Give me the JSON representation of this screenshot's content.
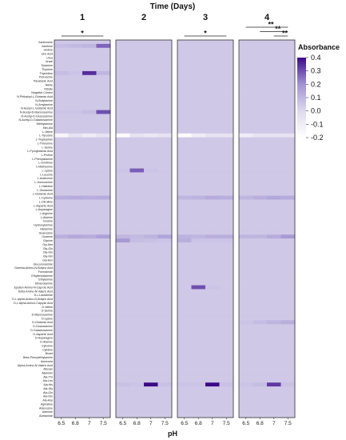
{
  "chart_data": {
    "type": "heatmap",
    "title": "Time (Days)",
    "xlabel": "pH",
    "panels": [
      "1",
      "2",
      "3",
      "4"
    ],
    "x_ticks": [
      "6.5",
      "6.8",
      "7",
      "7.5"
    ],
    "legend_title": "Absorbance",
    "color_scale": {
      "min": -0.2,
      "max": 0.4,
      "ticks": [
        "0.4",
        "0.3",
        "0.2",
        "0.1",
        "0.0",
        "-0.1",
        "-0.2"
      ],
      "low_color": "#ffffff",
      "high_color": "#3d0a87"
    },
    "row_labels": [
      "Xanthosine",
      "Xanthine",
      "Uridine",
      "Uric Acid",
      "Urea",
      "Uracil",
      "Tyramine",
      "Thymine",
      "Thymidine",
      "Putrescine",
      "Parabanic Acid",
      "Nitrite",
      "Nitrate",
      "Negative Control",
      "N-Phthaloyl-L-Glutamic Acid",
      "N-Butylamine",
      "N-Amylamine",
      "N-Acetyl-L-Glutamic Acid",
      "N-Acetyl-D-Mannosamine",
      "N-Acetyl-D-Glucosamine",
      "N-Acetyl-D-Galactosamine",
      "Methylamine",
      "Met-Ala",
      "L-Valine",
      "L-Tyrosine",
      "L-Tryptophan",
      "L-Threonine",
      "L-Serine",
      "L-Pyroglutamic Acid",
      "L-Proline",
      "L-Phenylalanine",
      "L-Ornithine",
      "L-Methionine",
      "L-Lysine",
      "L-Leucine",
      "L-Isoleucine",
      "L-Homoserine",
      "L-Histidine",
      "L-Glutamine",
      "L-Glutamic Acid",
      "L-Cysteine",
      "L-Citrulline",
      "L-Aspartic Acid",
      "L-Asparagine",
      "L-Arginine",
      "L-Alanine",
      "Inosine",
      "Hydroxylamine",
      "Histamine",
      "Guanosine",
      "Guanine",
      "Glycine",
      "Gly-Met",
      "Gly-Gln",
      "Gly-Glu",
      "Gly-Gln",
      "Gly-Asn",
      "Glucuronamide",
      "Gamma-Amino-N-Butyric Acid",
      "Formamide",
      "Ethylenediamine",
      "Ethylamine",
      "Ethanolamine",
      "Epsilon-Amino-N-Caproic Acid",
      "Delta-Amino-N-Valeric Acid",
      "D,L-Lactamide",
      "D,L-alpha-Amino-N-Butyric Acid",
      "D,L-alpha-Amino-Caprylic Acid",
      "D-Valine",
      "D-Serine",
      "D-Mannosamine",
      "D-Lysine",
      "D-Glutamic Acid",
      "D-Glucosamine",
      "D-Galactosamine",
      "D-Aspartic Acid",
      "D-Asparagine",
      "D-Alanine",
      "Cytosine",
      "Cytidine",
      "Biuret",
      "Beta-Phenylethylamine",
      "Ammonia",
      "Alpha-Amino-N-Valeric Acid",
      "Alloxan",
      "Allantoin",
      "Ala-Thr",
      "Ala-Leu",
      "Ala-His",
      "Ala-Gly",
      "Ala-Gln",
      "Ala-Glu",
      "Ala-Asp",
      "Agmatine",
      "Adenosine",
      "Adenine",
      "Acetamide"
    ],
    "base_value": 0.05,
    "values_grid": "panel x 4 pH columns x row; unspecified cells = base_value",
    "special_cells": [
      {
        "panel": 0,
        "row": "Xanthine",
        "values": [
          0.08,
          0.09,
          0.1,
          0.27
        ]
      },
      {
        "panel": 0,
        "row": "Thymidine",
        "values": [
          0.08,
          0.06,
          0.35,
          0.1
        ]
      },
      {
        "panel": 0,
        "row": "N-Acetyl-D-Mannosamine",
        "values": [
          0.06,
          0.06,
          0.08,
          0.3
        ]
      },
      {
        "panel": 0,
        "row": "L-Tyrosine",
        "values": [
          -0.15,
          -0.05,
          -0.1,
          -0.05
        ]
      },
      {
        "panel": 1,
        "row": "L-Tyrosine",
        "values": [
          -0.18,
          -0.05,
          -0.08,
          -0.05
        ]
      },
      {
        "panel": 2,
        "row": "L-Tyrosine",
        "values": [
          -0.18,
          -0.1,
          -0.05,
          -0.05
        ]
      },
      {
        "panel": 3,
        "row": "L-Tyrosine",
        "values": [
          -0.1,
          -0.05,
          -0.05,
          -0.05
        ]
      },
      {
        "panel": 1,
        "row": "L-Lysine",
        "values": [
          0.06,
          0.28,
          0.06,
          0.05
        ]
      },
      {
        "panel": 0,
        "row": "L-Cysteine",
        "values": [
          0.12,
          0.13,
          0.12,
          0.13
        ]
      },
      {
        "panel": 2,
        "row": "L-Cysteine",
        "values": [
          0.1,
          0.11,
          0.13,
          0.12
        ]
      },
      {
        "panel": 3,
        "row": "L-Cysteine",
        "values": [
          0.1,
          0.12,
          0.14,
          0.13
        ]
      },
      {
        "panel": 0,
        "row": "Guanine",
        "values": [
          0.12,
          0.14,
          0.13,
          0.16
        ]
      },
      {
        "panel": 1,
        "row": "Guanine",
        "values": [
          0.1,
          0.09,
          0.11,
          0.15
        ]
      },
      {
        "panel": 2,
        "row": "Guanine",
        "values": [
          0.11,
          0.1,
          0.12,
          0.12
        ]
      },
      {
        "panel": 3,
        "row": "Guanine",
        "values": [
          0.1,
          0.1,
          0.13,
          0.18
        ]
      },
      {
        "panel": 1,
        "row": "Glycine",
        "values": [
          0.18,
          0.08,
          0.07,
          0.06
        ]
      },
      {
        "panel": 2,
        "row": "Glycine",
        "values": [
          0.12,
          0.06,
          0.06,
          0.06
        ]
      },
      {
        "panel": 2,
        "row": "Epsilon-Amino-N-Caproic Acid",
        "values": [
          0.05,
          0.3,
          0.06,
          0.05
        ]
      },
      {
        "panel": 1,
        "row": "Ala-His",
        "values": [
          0.07,
          0.06,
          0.4,
          0.07
        ]
      },
      {
        "panel": 2,
        "row": "Ala-His",
        "values": [
          0.06,
          0.06,
          0.4,
          0.07
        ]
      },
      {
        "panel": 3,
        "row": "Ala-His",
        "values": [
          0.06,
          0.08,
          0.33,
          0.07
        ]
      },
      {
        "panel": 3,
        "row": "D-Glutamic Acid",
        "values": [
          0.06,
          0.08,
          0.1,
          0.12
        ]
      }
    ],
    "significance": [
      {
        "panel": 0,
        "from": 0,
        "to": 3,
        "label": "*"
      },
      {
        "panel": 2,
        "from": 0,
        "to": 3,
        "label": "*"
      },
      {
        "panel": 3,
        "from": 2,
        "to": 3,
        "label": "**"
      },
      {
        "panel": 3,
        "from": 1,
        "to": 3,
        "label": "**"
      },
      {
        "panel": 3,
        "from": 0,
        "to": 3,
        "label": "**"
      }
    ]
  }
}
